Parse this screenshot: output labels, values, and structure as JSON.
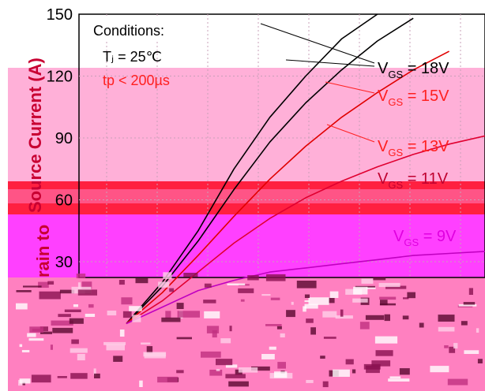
{
  "chart_data": {
    "type": "line",
    "title": "",
    "ylabel": "Drain to Source Current (A)",
    "ylabel_visible_part": "Source Current (A)",
    "ylabel_left_fragment": "rain to",
    "ylim": [
      0,
      150
    ],
    "yticks": [
      "30",
      "60",
      "90",
      "120",
      "150"
    ],
    "grid": true,
    "conditions": {
      "heading": "Conditions:",
      "tj": "Tⱼ = 25℃",
      "tp": "tp < 200µs"
    },
    "series": [
      {
        "name": "V_GS = 18V",
        "label_main": "V",
        "label_sub": "GS",
        "label_rest": " = 18V",
        "color": "#000000",
        "x": [
          0.0,
          0.5,
          1.0,
          1.5,
          2.0,
          2.5,
          3.0,
          3.5
        ],
        "values": [
          0,
          20,
          45,
          75,
          100,
          120,
          138,
          150
        ]
      },
      {
        "name": "V_GS = 15V",
        "label_main": "V",
        "label_sub": "GS",
        "label_rest": " = 15V",
        "color": "#000000",
        "x": [
          0.0,
          0.5,
          1.0,
          1.5,
          2.0,
          2.5,
          3.0,
          3.5,
          4.0
        ],
        "values": [
          0,
          18,
          40,
          65,
          88,
          107,
          123,
          137,
          148
        ]
      },
      {
        "name": "V_GS = 13V",
        "label_main": "V",
        "label_sub": "GS",
        "label_rest": " = 13V",
        "color": "#e00000",
        "x": [
          0.0,
          0.5,
          1.0,
          1.5,
          2.0,
          2.5,
          3.0,
          3.5,
          4.0,
          4.5
        ],
        "values": [
          0,
          15,
          33,
          52,
          70,
          86,
          100,
          112,
          123,
          132
        ]
      },
      {
        "name": "V_GS = 11V",
        "label_main": "V",
        "label_sub": "GS",
        "label_rest": " = 11V",
        "color": "#e00030",
        "x": [
          0.0,
          0.5,
          1.0,
          1.5,
          2.0,
          2.5,
          3.0,
          3.5,
          4.0,
          4.5,
          5.0
        ],
        "values": [
          0,
          11,
          25,
          39,
          51,
          61,
          69,
          76,
          82,
          87,
          91
        ]
      },
      {
        "name": "V_GS = 9V",
        "label_main": "V",
        "label_sub": "GS",
        "label_rest": " = 9V",
        "color": "#c000c0",
        "x": [
          0.0,
          0.5,
          1.0,
          1.5,
          2.0,
          2.5,
          3.0,
          3.5,
          4.0,
          4.5,
          5.0
        ],
        "values": [
          0,
          8,
          16,
          21,
          25,
          27,
          29,
          31,
          33,
          34,
          35
        ]
      }
    ],
    "xlim": [
      0,
      5
    ]
  },
  "colors": {
    "pink_band": "#ff80c0",
    "light_pink": "#ffb0d8",
    "red_band": "#ff2040",
    "magenta_band": "#ff40ff",
    "noise_dark": "#8a1050"
  }
}
